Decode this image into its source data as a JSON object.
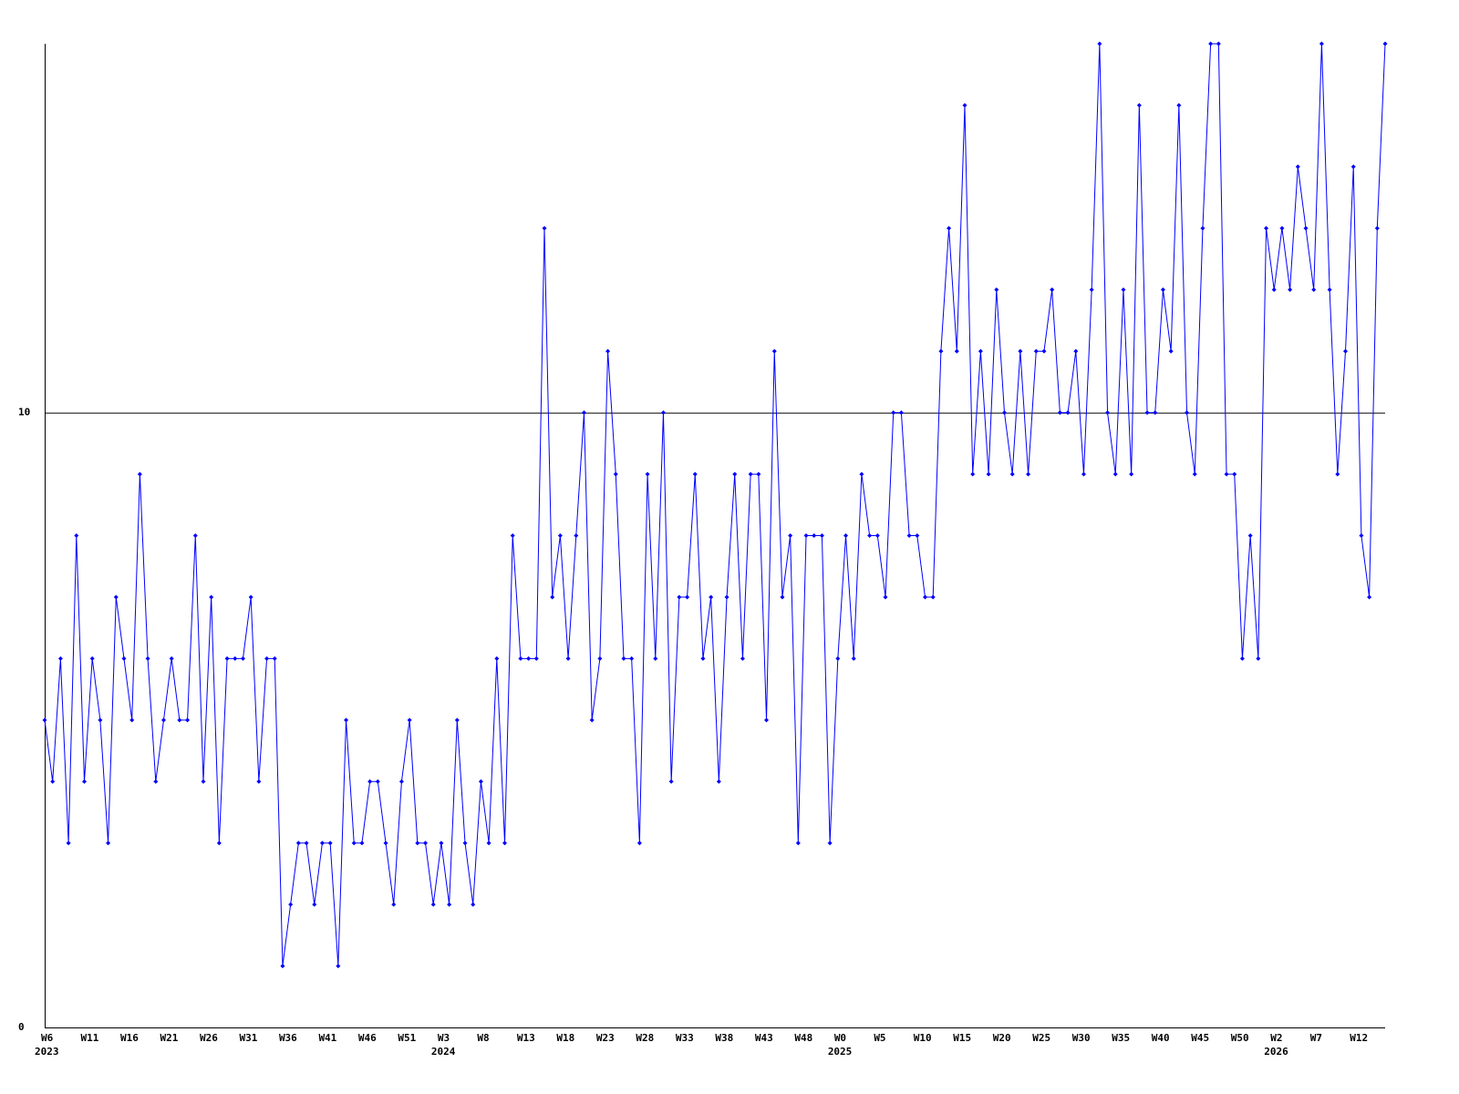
{
  "chart_data": {
    "type": "line",
    "categories": [
      "W6",
      null,
      null,
      null,
      null,
      "W11",
      null,
      null,
      null,
      null,
      "W16",
      null,
      null,
      null,
      null,
      "W21",
      null,
      null,
      null,
      null,
      "W26",
      null,
      null,
      null,
      null,
      "W31",
      null,
      null,
      null,
      null,
      "W36",
      null,
      null,
      null,
      null,
      "W41",
      null,
      null,
      null,
      null,
      "W46",
      null,
      null,
      null,
      null,
      "W51",
      null,
      null,
      null,
      null,
      "W3",
      null,
      null,
      null,
      null,
      "W8",
      null,
      null,
      null,
      null,
      "W13",
      null,
      null,
      null,
      null,
      "W18",
      null,
      null,
      null,
      null,
      "W23",
      null,
      null,
      null,
      null,
      "W28",
      null,
      null,
      null,
      null,
      "W33",
      null,
      null,
      null,
      null,
      "W38",
      null,
      null,
      null,
      null,
      "W43",
      null,
      null,
      null,
      null,
      "W48",
      null,
      null,
      null,
      null,
      "W0",
      null,
      null,
      null,
      null,
      "W5",
      null,
      null,
      null,
      null,
      "W10",
      null,
      null,
      null,
      null,
      "W15",
      null,
      null,
      null,
      null,
      "W20",
      null,
      null,
      null,
      null,
      "W25",
      null,
      null,
      null,
      null,
      "W30",
      null,
      null,
      null,
      null,
      "W35",
      null,
      null,
      null,
      null,
      "W40",
      null,
      null,
      null,
      null,
      "W45",
      null,
      null,
      null,
      null,
      "W50",
      null,
      null,
      null,
      null,
      "W2",
      null,
      null,
      null,
      null,
      "W7",
      null,
      null,
      null,
      null,
      "W12",
      null,
      null,
      null,
      null
    ],
    "years": [
      "2023",
      null,
      null,
      null,
      null,
      null,
      null,
      null,
      null,
      null,
      null,
      null,
      null,
      null,
      null,
      null,
      null,
      null,
      null,
      null,
      null,
      null,
      null,
      null,
      null,
      null,
      null,
      null,
      null,
      null,
      null,
      null,
      null,
      null,
      null,
      null,
      null,
      null,
      null,
      null,
      null,
      null,
      null,
      null,
      null,
      null,
      null,
      null,
      null,
      null,
      "2024",
      null,
      null,
      null,
      null,
      null,
      null,
      null,
      null,
      null,
      null,
      null,
      null,
      null,
      null,
      null,
      null,
      null,
      null,
      null,
      null,
      null,
      null,
      null,
      null,
      null,
      null,
      null,
      null,
      null,
      null,
      null,
      null,
      null,
      null,
      null,
      null,
      null,
      null,
      null,
      null,
      null,
      null,
      null,
      null,
      null,
      null,
      null,
      null,
      null,
      "2025",
      null,
      null,
      null,
      null,
      null,
      null,
      null,
      null,
      null,
      null,
      null,
      null,
      null,
      null,
      null,
      null,
      null,
      null,
      null,
      null,
      null,
      null,
      null,
      null,
      null,
      null,
      null,
      null,
      null,
      null,
      null,
      null,
      null,
      null,
      null,
      null,
      null,
      null,
      null,
      null,
      null,
      null,
      null,
      null,
      null,
      null,
      null,
      null,
      null,
      null,
      null,
      null,
      null,
      null,
      "2026",
      null,
      null,
      null,
      null,
      null,
      null,
      null,
      null,
      null,
      null,
      null,
      null,
      null,
      null
    ],
    "series": [
      {
        "color": "#0000ff",
        "values": [
          5,
          4,
          6,
          3,
          8,
          4,
          6,
          5,
          3,
          7,
          6,
          5,
          9,
          6,
          4,
          5,
          6,
          5,
          5,
          8,
          4,
          7,
          3,
          6,
          6,
          6,
          7,
          4,
          6,
          6,
          1,
          2,
          3,
          3,
          2,
          3,
          3,
          1,
          5,
          3,
          3,
          4,
          4,
          3,
          2,
          4,
          5,
          3,
          3,
          2,
          3,
          2,
          5,
          3,
          2,
          4,
          3,
          6,
          3,
          8,
          6,
          6,
          6,
          13,
          7,
          8,
          6,
          8,
          10,
          5,
          6,
          11,
          9,
          6,
          6,
          3,
          9,
          6,
          10,
          4,
          7,
          7,
          9,
          6,
          7,
          4,
          7,
          9,
          6,
          9,
          9,
          5,
          11,
          7,
          8,
          3,
          8,
          8,
          8,
          3,
          6,
          8,
          6,
          9,
          8,
          8,
          7,
          10,
          10,
          8,
          8,
          7,
          7,
          11,
          13,
          11,
          15,
          9,
          11,
          9,
          12,
          10,
          9,
          11,
          9,
          11,
          11,
          12,
          10,
          10,
          11,
          9,
          12,
          16,
          10,
          9,
          12,
          9,
          15,
          10,
          10,
          12,
          11,
          15,
          10,
          9,
          13,
          16,
          16,
          9,
          9,
          6,
          8,
          6,
          13,
          12,
          13,
          12,
          14,
          13,
          12,
          16,
          12,
          9,
          11,
          14,
          8,
          7,
          13,
          16
        ]
      }
    ],
    "ylim": [
      0,
      16
    ],
    "yticks": [
      0,
      10
    ],
    "grid": true
  }
}
